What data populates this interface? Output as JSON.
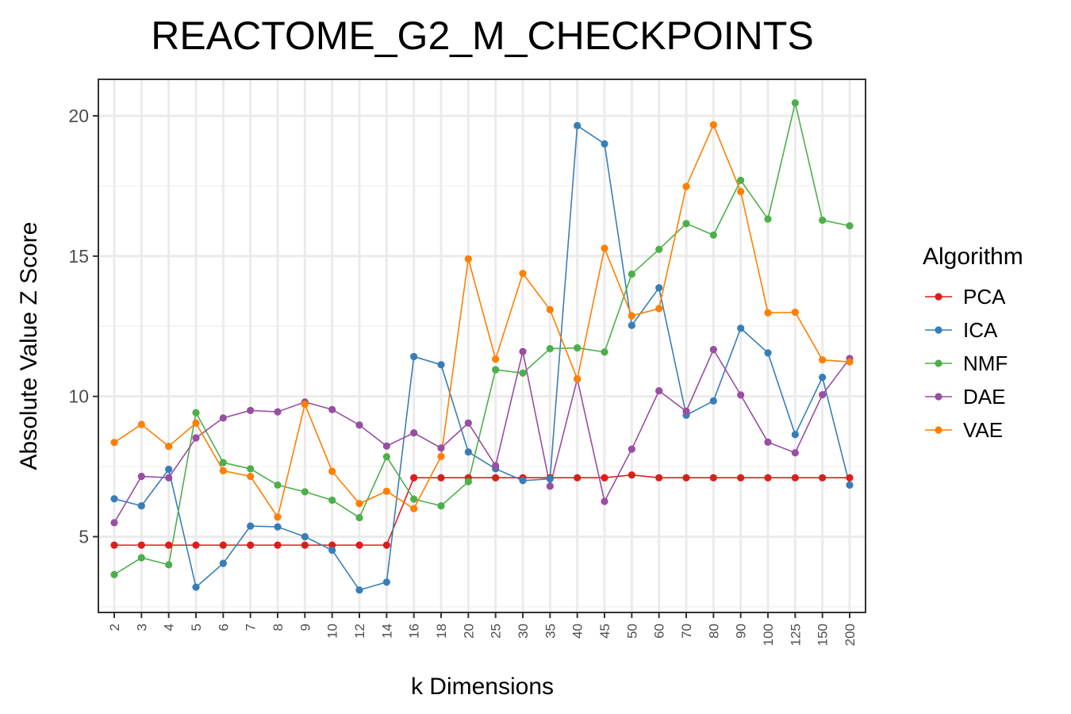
{
  "chart_data": {
    "type": "line",
    "title": "REACTOME_G2_M_CHECKPOINTS",
    "xlabel": "k Dimensions",
    "ylabel": "Absolute Value Z Score",
    "x_scale": "categorical",
    "categories": [
      "2",
      "3",
      "4",
      "5",
      "6",
      "7",
      "8",
      "9",
      "10",
      "12",
      "14",
      "16",
      "18",
      "20",
      "25",
      "30",
      "35",
      "40",
      "45",
      "50",
      "60",
      "70",
      "80",
      "90",
      "100",
      "125",
      "150",
      "200"
    ],
    "ylim": [
      2.3,
      21.3
    ],
    "y_ticks": [
      "5",
      "10",
      "15",
      "20"
    ],
    "grid": true,
    "legend": {
      "title": "Algorithm",
      "position": "right"
    },
    "series": [
      {
        "name": "PCA",
        "color": "#e41a1c",
        "values": [
          4.7,
          4.7,
          4.7,
          4.7,
          4.7,
          4.7,
          4.7,
          4.7,
          4.7,
          4.7,
          4.7,
          7.1,
          7.1,
          7.1,
          7.1,
          7.1,
          7.1,
          7.1,
          7.1,
          7.2,
          7.1,
          7.1,
          7.1,
          7.1,
          7.1,
          7.1,
          7.1,
          7.1
        ]
      },
      {
        "name": "ICA",
        "color": "#377eb8",
        "values": [
          6.35,
          6.1,
          7.4,
          3.2,
          4.05,
          5.38,
          5.35,
          5.0,
          4.52,
          3.1,
          3.38,
          11.42,
          11.13,
          8.02,
          7.42,
          7.0,
          7.06,
          19.65,
          19.0,
          12.53,
          13.87,
          9.33,
          9.84,
          12.43,
          11.55,
          8.64,
          10.68,
          6.84
        ]
      },
      {
        "name": "NMF",
        "color": "#4daf4a",
        "values": [
          3.65,
          4.25,
          4.0,
          9.42,
          7.64,
          7.42,
          6.84,
          6.6,
          6.3,
          5.68,
          7.85,
          6.34,
          6.1,
          6.96,
          10.95,
          10.83,
          11.7,
          11.73,
          11.58,
          14.36,
          15.24,
          16.16,
          15.75,
          17.7,
          16.32,
          20.46,
          16.28,
          16.08
        ]
      },
      {
        "name": "DAE",
        "color": "#984ea3",
        "values": [
          5.5,
          7.15,
          7.1,
          8.52,
          9.23,
          9.5,
          9.45,
          9.8,
          9.53,
          8.98,
          8.23,
          8.7,
          8.16,
          9.05,
          7.53,
          11.6,
          6.8,
          10.62,
          6.26,
          8.12,
          10.2,
          9.47,
          11.67,
          10.05,
          8.37,
          7.99,
          10.06,
          11.35
        ]
      },
      {
        "name": "VAE",
        "color": "#ff7f00",
        "values": [
          8.36,
          9.0,
          8.22,
          9.05,
          7.35,
          7.15,
          5.7,
          9.72,
          7.33,
          6.18,
          6.62,
          6.0,
          7.86,
          14.9,
          11.33,
          14.38,
          13.09,
          10.62,
          15.28,
          12.87,
          13.13,
          17.48,
          19.68,
          17.3,
          12.98,
          13.0,
          11.3,
          11.23
        ]
      }
    ]
  }
}
